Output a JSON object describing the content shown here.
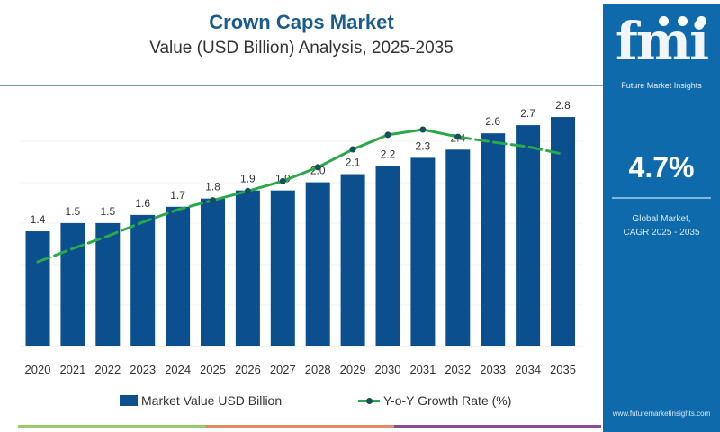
{
  "header": {
    "title": "Crown Caps Market",
    "subtitle": "Value (USD Billion) Analysis, 2025-2035"
  },
  "side_panel": {
    "logo_text": "fmi",
    "logo_subtitle": "Future Market Insights",
    "cagr_value": "4.7%",
    "cagr_label_line1": "Global Market,",
    "cagr_label_line2": "CAGR 2025 - 2035",
    "website": "www.futuremarketinsights.com"
  },
  "colors": {
    "bar": "#0b4f8f",
    "line": "#2aa84a",
    "marker": "#14505a",
    "panel": "#0e6aab",
    "title": "#1a5d8c",
    "stripe": [
      "#9bc86a",
      "#e48a6a",
      "#8a4a9a"
    ]
  },
  "chart_data": {
    "type": "bar",
    "title": "Crown Caps Market",
    "subtitle": "Value (USD Billion) Analysis, 2025-2035",
    "xlabel": "",
    "ylabel": "",
    "categories": [
      "2020",
      "2021",
      "2022",
      "2023",
      "2024",
      "2025",
      "2026",
      "2027",
      "2028",
      "2029",
      "2030",
      "2031",
      "2032",
      "2033",
      "2034",
      "2035"
    ],
    "series": [
      {
        "name": "Market Value USD Billion",
        "type": "bar",
        "values": [
          1.4,
          1.5,
          1.5,
          1.6,
          1.7,
          1.8,
          1.9,
          1.9,
          2.0,
          2.1,
          2.2,
          2.3,
          2.4,
          2.6,
          2.7,
          2.8
        ],
        "labels": [
          "1.4",
          "1.5",
          "1.5",
          "1.6",
          "1.7",
          "1.8",
          "1.9",
          "1.9",
          "2.0",
          "2.1",
          "2.2",
          "2.3",
          "2.4",
          "2.6",
          "2.7",
          "2.8"
        ]
      },
      {
        "name": "Y-o-Y Growth Rate (%)",
        "type": "line",
        "values_estimated": [
          3.5,
          3.7,
          3.89,
          4.1,
          4.29,
          4.43,
          4.57,
          4.72,
          4.93,
          5.2,
          5.42,
          5.5,
          5.39,
          5.31,
          5.24,
          5.13
        ],
        "dashed_ranges": [
          [
            "2020",
            "2025"
          ],
          [
            "2032",
            "2035"
          ]
        ],
        "markers_at": [
          "2025",
          "2026",
          "2027",
          "2028",
          "2029",
          "2030",
          "2031",
          "2032"
        ]
      }
    ],
    "ylim": [
      0,
      3.2
    ],
    "growth_ylim": [
      0,
      7.5
    ],
    "grid": true,
    "legend": "bottom",
    "legend_entries": [
      "Market Value USD Billion",
      "Y-o-Y Growth Rate (%)"
    ]
  }
}
